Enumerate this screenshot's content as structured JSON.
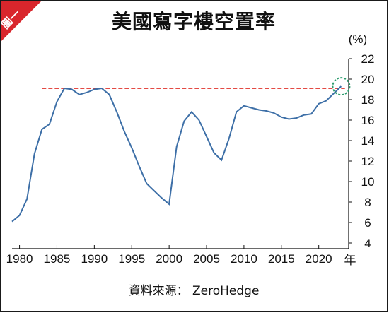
{
  "badge": {
    "label": "圖一",
    "color": "#d9262c"
  },
  "source_text": "資料來源： ZeroHedge",
  "chart_data": {
    "type": "line",
    "title": "美國寫字樓空置率",
    "ylabel": "(%)",
    "xlabel": "年",
    "xlim": [
      1979,
      2024
    ],
    "ylim": [
      4,
      22
    ],
    "x_ticks": [
      1980,
      1985,
      1990,
      1995,
      2000,
      2005,
      2010,
      2015,
      2020
    ],
    "y_ticks": [
      4,
      6,
      8,
      10,
      12,
      14,
      16,
      18,
      20,
      22
    ],
    "grid": false,
    "line_color": "#3d6fa7",
    "series": [
      {
        "x": [
          1979,
          1980,
          1981,
          1982,
          1983,
          1984,
          1985,
          1986,
          1987,
          1988,
          1989,
          1990,
          1991,
          1992,
          1993,
          1994,
          1995,
          1996,
          1997,
          1998,
          1999,
          2000,
          2001,
          2002,
          2003,
          2004,
          2005,
          2006,
          2007,
          2008,
          2009,
          2010,
          2011,
          2012,
          2013,
          2014,
          2015,
          2016,
          2017,
          2018,
          2019,
          2020,
          2021,
          2022,
          2023
        ],
        "y": [
          6.1,
          6.7,
          8.3,
          12.7,
          15.1,
          15.6,
          17.8,
          19.1,
          19.0,
          18.5,
          18.7,
          19.0,
          19.1,
          18.5,
          16.8,
          14.9,
          13.3,
          11.5,
          9.8,
          9.1,
          8.4,
          7.8,
          13.4,
          15.9,
          16.8,
          16.0,
          14.4,
          12.8,
          12.1,
          14.2,
          16.8,
          17.4,
          17.2,
          17.0,
          16.9,
          16.7,
          16.3,
          16.1,
          16.2,
          16.5,
          16.6,
          17.6,
          17.9,
          18.6,
          19.3
        ]
      }
    ],
    "reference_line": {
      "y": 19.1,
      "color": "#e0302a",
      "style": "dashed"
    },
    "highlight_circle": {
      "x": 2023,
      "y": 19.3,
      "color": "#2e9c6e"
    }
  }
}
